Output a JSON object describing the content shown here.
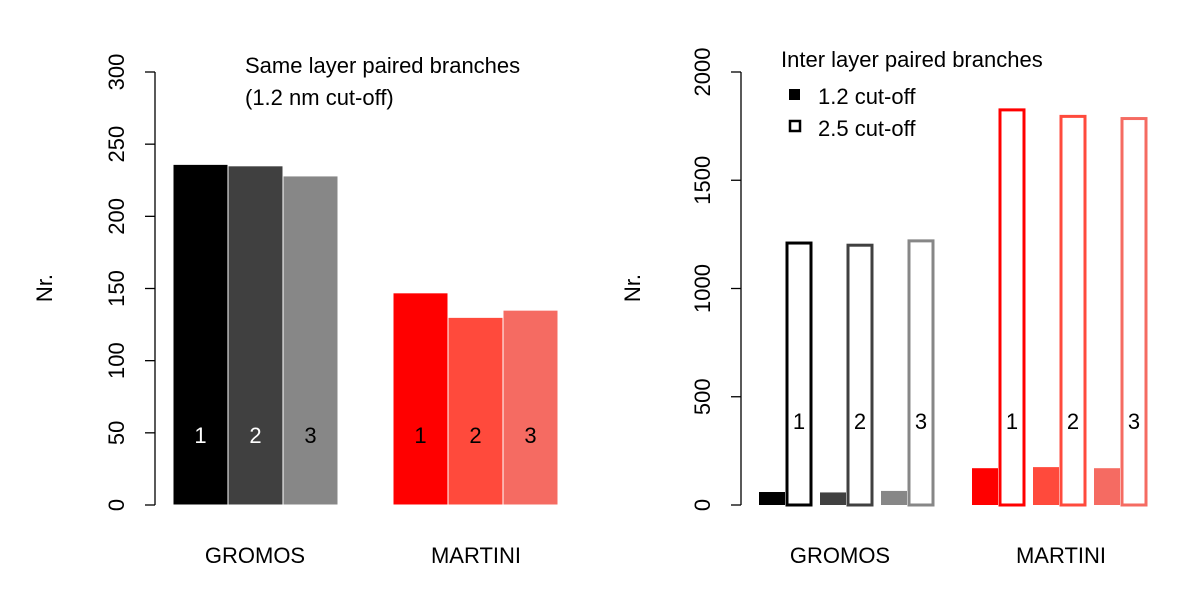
{
  "chart_data": [
    {
      "type": "bar",
      "title_lines": [
        "Same layer paired branches",
        "(1.2 nm cut-off)"
      ],
      "ylabel": "Nr.",
      "ylim": [
        0,
        300
      ],
      "yticks": [
        0,
        50,
        100,
        150,
        200,
        250,
        300
      ],
      "groups": [
        {
          "label": "GROMOS",
          "bars": [
            {
              "label": "1",
              "value": 236,
              "color": "#000000",
              "label_color": "#ffffff"
            },
            {
              "label": "2",
              "value": 235,
              "color": "#404040",
              "label_color": "#ffffff"
            },
            {
              "label": "3",
              "value": 228,
              "color": "#878787",
              "label_color": "#000000"
            }
          ]
        },
        {
          "label": "MARTINI",
          "bars": [
            {
              "label": "1",
              "value": 147,
              "color": "#ff0000",
              "label_color": "#000000"
            },
            {
              "label": "2",
              "value": 130,
              "color": "#ff4a3c",
              "label_color": "#000000"
            },
            {
              "label": "3",
              "value": 135,
              "color": "#f56b62",
              "label_color": "#000000"
            }
          ]
        }
      ]
    },
    {
      "type": "bar",
      "title": "Inter layer paired branches",
      "ylabel": "Nr.",
      "ylim": [
        0,
        2000
      ],
      "yticks": [
        0,
        500,
        1000,
        1500,
        2000
      ],
      "legend": [
        {
          "label": "1.2 cut-off",
          "style": "filled"
        },
        {
          "label": "2.5 cut-off",
          "style": "outline"
        }
      ],
      "groups": [
        {
          "label": "GROMOS",
          "pairs": [
            {
              "label": "1",
              "color": "#000000",
              "cut_1_2": 60,
              "cut_2_5": 1210
            },
            {
              "label": "2",
              "color": "#404040",
              "cut_1_2": 58,
              "cut_2_5": 1200
            },
            {
              "label": "3",
              "color": "#878787",
              "cut_1_2": 65,
              "cut_2_5": 1220
            }
          ]
        },
        {
          "label": "MARTINI",
          "pairs": [
            {
              "label": "1",
              "color": "#ff0000",
              "cut_1_2": 170,
              "cut_2_5": 1825
            },
            {
              "label": "2",
              "color": "#ff4a3c",
              "cut_1_2": 175,
              "cut_2_5": 1795
            },
            {
              "label": "3",
              "color": "#f56b62",
              "cut_1_2": 170,
              "cut_2_5": 1785
            }
          ]
        }
      ]
    }
  ]
}
